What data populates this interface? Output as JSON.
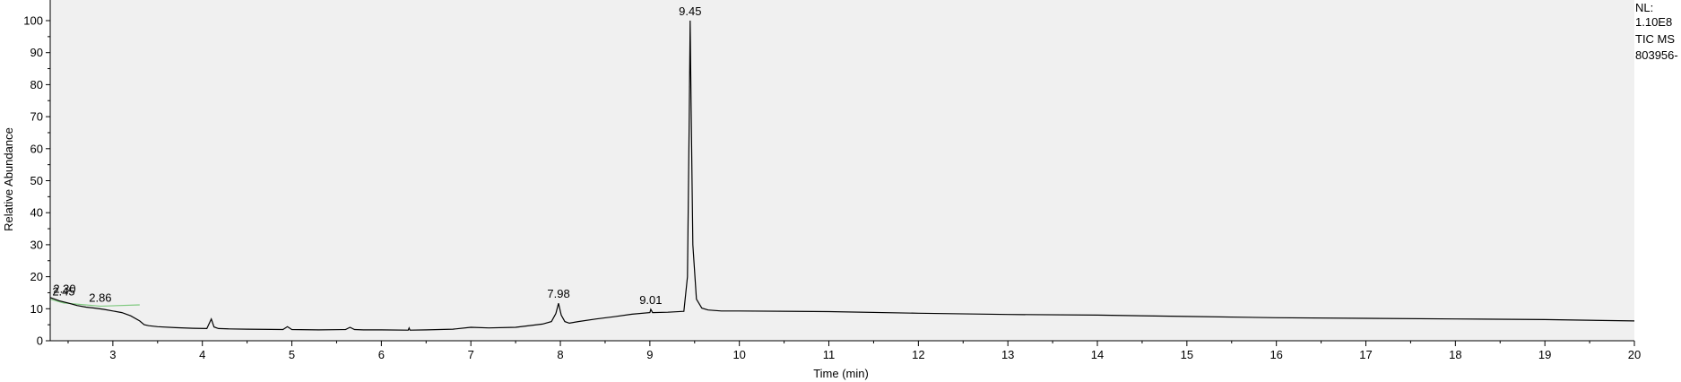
{
  "chart_data": {
    "type": "line",
    "title": "",
    "xlabel": "Time (min)",
    "ylabel": "Relative Abundance",
    "xlim": [
      2.3,
      20
    ],
    "ylim": [
      0,
      100
    ],
    "x_ticks": [
      "3",
      "4",
      "5",
      "6",
      "7",
      "8",
      "9",
      "10",
      "11",
      "12",
      "13",
      "14",
      "15",
      "16",
      "17",
      "18",
      "19",
      "20"
    ],
    "y_ticks": [
      "0",
      "10",
      "20",
      "30",
      "40",
      "50",
      "60",
      "70",
      "80",
      "90",
      "100"
    ],
    "grid": false,
    "legend": "none",
    "colors": {
      "trace": "#000000",
      "baseline": "#7fc97f",
      "plot_background": "#f0f0f0",
      "axis": "#000000"
    },
    "side_notes": [
      "NL:",
      "1.10E8",
      "TIC  MS",
      "803956-"
    ],
    "peaks": [
      {
        "label": "2.30",
        "x": 2.3,
        "y": 13.3
      },
      {
        "label": "2.45",
        "x": 2.45,
        "y": 12.4
      },
      {
        "label": "2.86",
        "x": 2.86,
        "y": 10.5
      },
      {
        "label": "7.98",
        "x": 7.98,
        "y": 11.7
      },
      {
        "label": "9.01",
        "x": 9.01,
        "y": 9.8
      },
      {
        "label": "9.45",
        "x": 9.45,
        "y": 100
      }
    ],
    "baseline_segments": [
      {
        "x": [
          2.3,
          2.45
        ],
        "y": [
          13.0,
          11.8
        ]
      },
      {
        "x": [
          2.45,
          2.86
        ],
        "y": [
          11.8,
          10.8
        ]
      },
      {
        "x": [
          2.86,
          3.3
        ],
        "y": [
          10.8,
          11.2
        ]
      }
    ],
    "series": [
      {
        "x": [
          2.3,
          2.4,
          2.5,
          2.6,
          2.7,
          2.8,
          2.9,
          3.0,
          3.1,
          3.2,
          3.3,
          3.35,
          3.4,
          3.5,
          3.7,
          3.9,
          4.05,
          4.1,
          4.13,
          4.18,
          4.3,
          4.5,
          4.9,
          4.95,
          5.0,
          5.3,
          5.6,
          5.65,
          5.7,
          5.8,
          6.0,
          6.3,
          6.31,
          6.32,
          6.5,
          6.8,
          7.0,
          7.2,
          7.5,
          7.8,
          7.9,
          7.95,
          7.98,
          8.01,
          8.05,
          8.1,
          8.2,
          8.4,
          8.6,
          8.8,
          9.0,
          9.01,
          9.03,
          9.2,
          9.38,
          9.42,
          9.44,
          9.45,
          9.46,
          9.48,
          9.52,
          9.58,
          9.65,
          9.8,
          10,
          11,
          12,
          13,
          14,
          15,
          16,
          17,
          18,
          19,
          20
        ],
        "y": [
          13.5,
          12.5,
          11.8,
          11.0,
          10.5,
          10.2,
          9.8,
          9.3,
          8.8,
          7.8,
          6.2,
          5.0,
          4.7,
          4.4,
          4.1,
          3.9,
          3.8,
          6.8,
          4.3,
          3.8,
          3.7,
          3.6,
          3.5,
          4.4,
          3.5,
          3.4,
          3.5,
          4.2,
          3.5,
          3.4,
          3.4,
          3.3,
          4.0,
          3.3,
          3.4,
          3.6,
          4.2,
          4.0,
          4.2,
          5.2,
          6.0,
          8.5,
          11.7,
          8.0,
          6.0,
          5.5,
          6.0,
          6.8,
          7.5,
          8.3,
          8.8,
          9.8,
          8.8,
          8.9,
          9.2,
          20,
          70,
          100,
          75,
          30,
          13,
          10.2,
          9.6,
          9.3,
          9.3,
          9.1,
          8.6,
          8.2,
          8.0,
          7.6,
          7.2,
          7.0,
          6.8,
          6.6,
          6.2
        ]
      }
    ]
  }
}
